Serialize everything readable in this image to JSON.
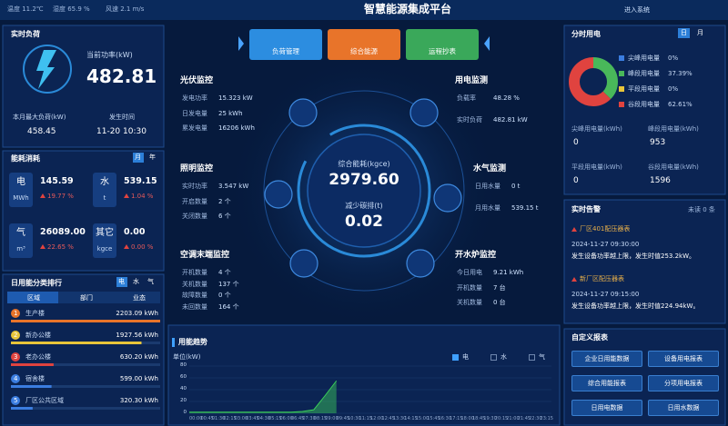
{
  "topbar": {
    "temperature": "温度 11.2℃",
    "humidity": "湿度 65.9 %",
    "wind": "风速 2.1 m/s",
    "title": "智慧能源集成平台",
    "enter": "进入系统"
  },
  "nav": [
    "负荷管理",
    "综合能源",
    "运程抄表"
  ],
  "realtime_load": {
    "title": "实时负荷",
    "power_label": "当前功率(kW)",
    "power": "482.81",
    "max_label": "本月最大负荷(kW)",
    "max": "458.45",
    "time_label": "发生时间",
    "time": "11-20 10:30"
  },
  "consumption": {
    "title": "能耗消耗",
    "tabs": [
      "月",
      "年"
    ],
    "items": [
      {
        "name": "电",
        "unit": "MWh",
        "value": "145.59",
        "change": "19.77 %"
      },
      {
        "name": "水",
        "unit": "t",
        "value": "539.15",
        "change": "1.04 %"
      },
      {
        "name": "气",
        "unit": "m³",
        "value": "26089.00",
        "change": "22.65 %"
      },
      {
        "name": "其它",
        "unit": "kgce",
        "value": "0.00",
        "change": "0.00 %"
      }
    ]
  },
  "ranking": {
    "title": "日用能分类排行",
    "tabs": [
      "电",
      "水",
      "气"
    ],
    "headers": [
      "区域",
      "部门",
      "业态"
    ],
    "rows": [
      {
        "rank": "1",
        "name": "生产楼",
        "value": 2203.09,
        "value_label": "2203.09 kWh"
      },
      {
        "rank": "2",
        "name": "新办公楼",
        "value": 1927.56,
        "value_label": "1927.56 kWh"
      },
      {
        "rank": "3",
        "name": "老办公楼",
        "value": 630.2,
        "value_label": "630.20 kWh"
      },
      {
        "rank": "4",
        "name": "宿舍楼",
        "value": 599,
        "value_label": "599.00 kWh"
      },
      {
        "rank": "5",
        "name": "厂区公共区域",
        "value": 320.3,
        "value_label": "320.30 kWh"
      }
    ]
  },
  "monitors": [
    {
      "title": "光伏监控",
      "rows": [
        [
          "发电功率",
          "15.323 kW"
        ],
        [
          "日发电量",
          "25 kWh"
        ],
        [
          "累发电量",
          "16206 kWh"
        ]
      ]
    },
    {
      "title": "照明监控",
      "rows": [
        [
          "实时功率",
          "3.547 kW"
        ],
        [
          "开启数量",
          "2 个"
        ],
        [
          "关闭数量",
          "6 个"
        ]
      ]
    },
    {
      "title": "空调末端监控",
      "rows": [
        [
          "开机数量",
          "4 个"
        ],
        [
          "关机数量",
          "137 个"
        ],
        [
          "故障数量",
          "0 个"
        ],
        [
          "未回数量",
          "164 个"
        ]
      ]
    },
    {
      "title": "用电监测",
      "rows": [
        [
          "负载率",
          "48.28 %"
        ],
        [
          "实时负荷",
          "482.81 kW"
        ]
      ]
    },
    {
      "title": "水气监测",
      "rows": [
        [
          "日用水量",
          "0 t"
        ],
        [
          "月用水量",
          "539.15 t"
        ]
      ]
    },
    {
      "title": "开水炉监控",
      "rows": [
        [
          "今日用电",
          "9.21 kWh"
        ],
        [
          "开机数量",
          "7 台"
        ],
        [
          "关机数量",
          "0 台"
        ]
      ]
    }
  ],
  "center": {
    "energy_label": "综合能耗(kgce)",
    "energy": "2979.60",
    "carbon_label": "减少碳排(t)",
    "carbon": "0.02"
  },
  "trend": {
    "title": "用能趋势",
    "legend": [
      "电",
      "水",
      "气"
    ],
    "unit": "单位(kW)",
    "color": "#3ccf5a",
    "x": [
      "00:00",
      "00:45",
      "01:30",
      "02:15",
      "03:00",
      "03:45",
      "04:30",
      "05:15",
      "06:00",
      "06:45",
      "07:30",
      "08:15",
      "09:00",
      "09:45",
      "10:30",
      "11:15",
      "12:00",
      "12:45",
      "13:30",
      "14:15",
      "15:00",
      "15:45",
      "16:30",
      "17:15",
      "18:00",
      "18:45",
      "19:30",
      "20:15",
      "21:00",
      "21:45",
      "22:30",
      "23:15"
    ],
    "values": [
      2,
      2,
      2,
      2,
      2,
      2,
      2,
      2,
      2,
      2,
      3,
      6,
      30,
      55,
      null,
      null,
      null,
      null,
      null,
      null,
      null,
      null,
      null,
      null,
      null,
      null,
      null,
      null,
      null,
      null,
      null,
      null
    ],
    "ylim": [
      0,
      80
    ],
    "yticks": [
      0,
      20,
      40,
      60,
      80
    ]
  },
  "time_of_use": {
    "title": "分时用电",
    "tabs": [
      "日",
      "月"
    ],
    "items": [
      {
        "name": "尖峰用电量",
        "color": "#3b7de0",
        "value": 0,
        "value_label": "0%"
      },
      {
        "name": "峰段用电量",
        "color": "#49b85a",
        "value": 37.39,
        "value_label": "37.39%"
      },
      {
        "name": "平段用电量",
        "color": "#e8c53a",
        "value": 0,
        "value_label": "0%"
      },
      {
        "name": "谷段用电量",
        "color": "#e0433f",
        "value": 62.61,
        "value_label": "62.61%"
      }
    ],
    "stats": [
      [
        "尖峰用电量(kWh)",
        "0"
      ],
      [
        "峰段用电量(kWh)",
        "953"
      ],
      [
        "平段用电量(kWh)",
        "0"
      ],
      [
        "谷段用电量(kWh)",
        "1596"
      ]
    ]
  },
  "alarms": {
    "title": "实时告警",
    "unread": "未读 0 条",
    "items": [
      {
        "name": "厂区401配压器表",
        "time": "2024-11-27 09:30:00",
        "desc": "发生设备功率越上限，发生时值253.2kW。"
      },
      {
        "name": "新厂区配压器表",
        "time": "2024-11-27 09:15:00",
        "desc": "发生设备功率越上限，发生时值224.94kW。"
      }
    ]
  },
  "reports": {
    "title": "自定义报表",
    "buttons": [
      "企业日用能数据",
      "设备用电报表",
      "综合用能报表",
      "分项用电报表",
      "日用电数据",
      "日用水数据"
    ]
  }
}
